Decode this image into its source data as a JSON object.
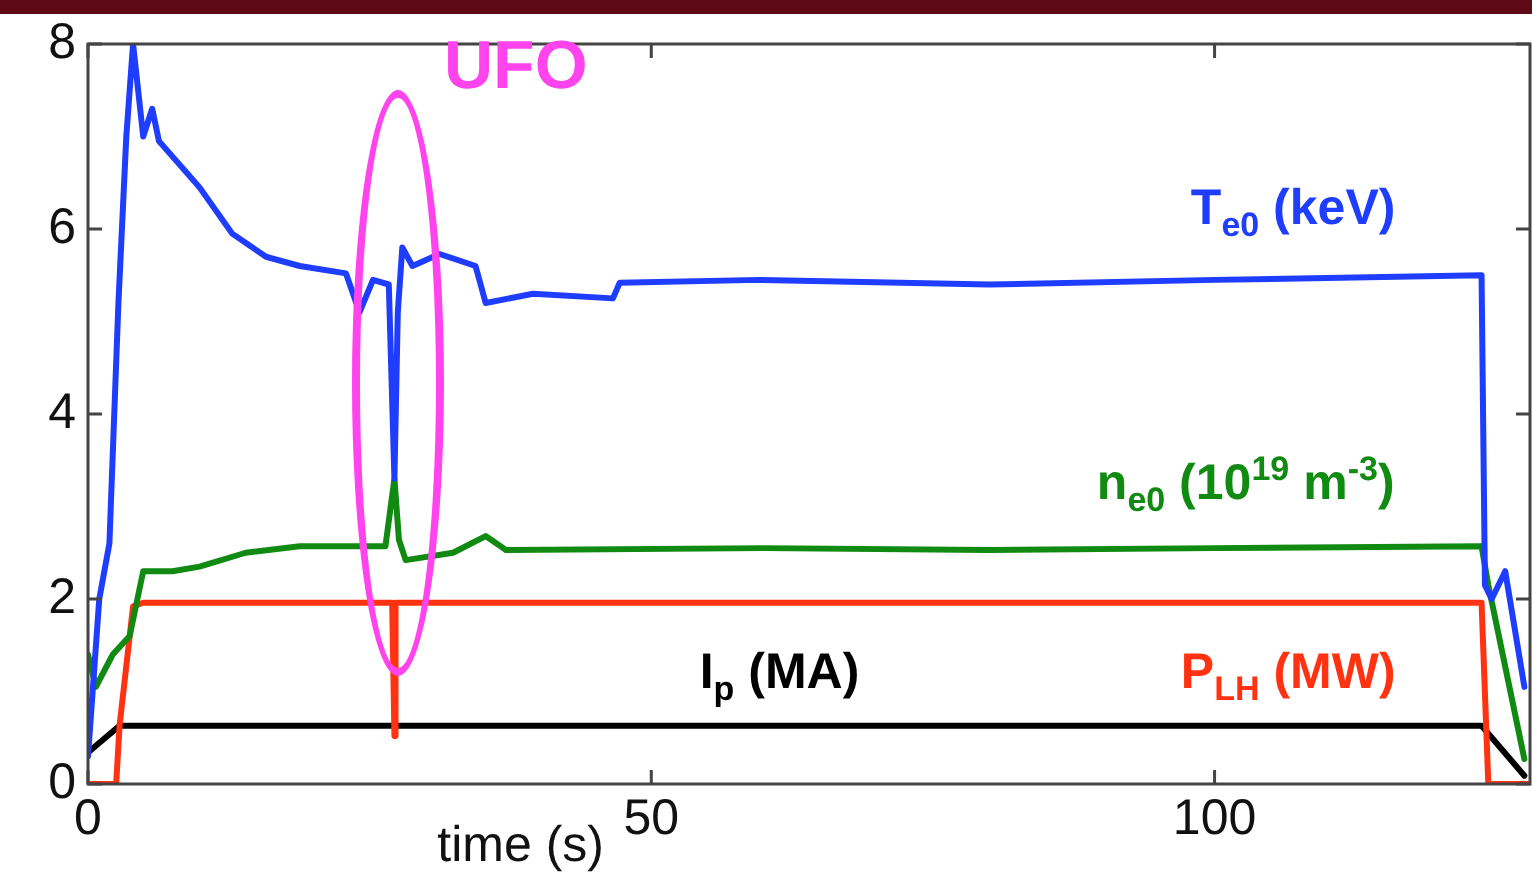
{
  "chart_data": {
    "type": "line",
    "xlabel": "time (s)",
    "xlim": [
      0,
      128
    ],
    "xticks": [
      0,
      50,
      100
    ],
    "ylim": [
      0,
      8
    ],
    "yticks": [
      0,
      2,
      4,
      6,
      8
    ],
    "grid": false,
    "legend": false,
    "marker": "none",
    "line_style": "solid",
    "series": [
      {
        "name": "T$_{e0}$ (keV)",
        "color": "#1f3dff",
        "x": [
          0,
          1,
          1.9,
          2.7,
          3.4,
          4,
          4.9,
          5.7,
          6.3,
          9.9,
          12.8,
          15.8,
          18.8,
          22.9,
          24.1,
          25.3,
          26.7,
          27.2,
          27.5,
          27.9,
          28.8,
          31.2,
          34.4,
          35.3,
          39.5,
          46.6,
          47.2,
          59.6,
          80,
          100,
          123.7,
          124,
          124.6,
          125.8,
          127.5
        ],
        "values": [
          0.3,
          2.0,
          2.6,
          5.2,
          7.0,
          8.0,
          7.0,
          7.3,
          6.95,
          6.45,
          5.95,
          5.7,
          5.6,
          5.52,
          5.1,
          5.45,
          5.4,
          3.3,
          5.1,
          5.8,
          5.6,
          5.73,
          5.6,
          5.2,
          5.3,
          5.25,
          5.42,
          5.45,
          5.4,
          5.45,
          5.5,
          2.15,
          2.0,
          2.3,
          1.05
        ]
      },
      {
        "name": "n$_{e0}$ (10$^{19}$ m$^{-3}$)",
        "color": "#118a11",
        "x": [
          0,
          0.7,
          2.2,
          3.7,
          4.9,
          7.5,
          9.9,
          14,
          18.8,
          26.4,
          27.2,
          27.6,
          28.2,
          32.4,
          35.3,
          37.1,
          60,
          80,
          100,
          123.7,
          124.3,
          127.5
        ],
        "values": [
          1.4,
          1.05,
          1.4,
          1.6,
          2.3,
          2.3,
          2.35,
          2.5,
          2.57,
          2.57,
          3.3,
          2.64,
          2.42,
          2.5,
          2.68,
          2.53,
          2.55,
          2.53,
          2.55,
          2.57,
          2.15,
          0.27
        ]
      },
      {
        "name": "P$_{LH}$ (MW)",
        "color": "#ff3311",
        "x": [
          0,
          2.5,
          2.8,
          4,
          4.9,
          27,
          27.2,
          27.3,
          123.7,
          124.3,
          128
        ],
        "values": [
          0,
          0,
          0.63,
          1.92,
          1.96,
          1.96,
          0.52,
          1.96,
          1.96,
          0,
          0
        ]
      },
      {
        "name": "I$_{p}$ (MA)",
        "color": "#000000",
        "x": [
          0,
          2.8,
          123.7,
          127.5
        ],
        "values": [
          0.34,
          0.63,
          0.63,
          0.09
        ]
      }
    ],
    "annotations": [
      "UFO"
    ]
  }
}
